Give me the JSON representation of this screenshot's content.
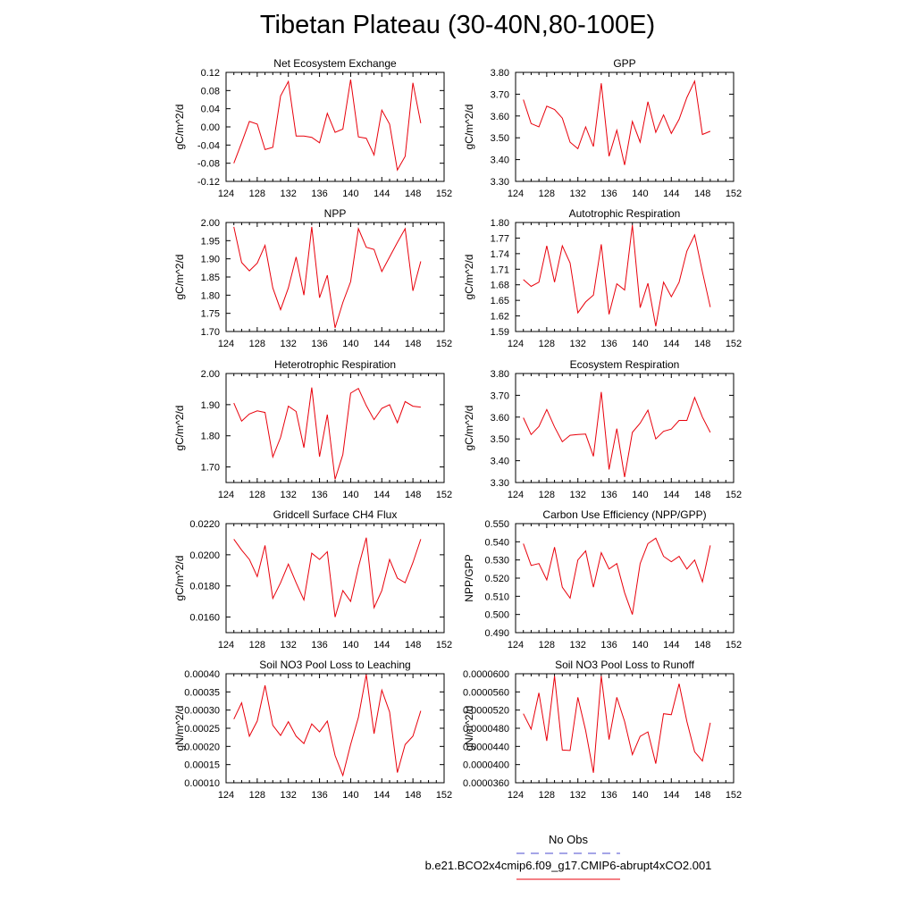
{
  "title": "Tibetan Plateau (30-40N,80-100E)",
  "x_ticks": [
    "124",
    "128",
    "132",
    "136",
    "140",
    "144",
    "148",
    "152"
  ],
  "legend": {
    "obs_label": "No Obs",
    "model_label": "b.e21.BCO2x4cmip6.f09_g17.CMIP6-abrupt4xCO2.001",
    "obs_color": "#4b4bcf",
    "model_color": "#e8000b"
  },
  "chart_data": [
    {
      "type": "line",
      "title": "Net Ecosystem Exchange",
      "ylabel": "gC/m^2/d",
      "xlim": [
        124,
        152
      ],
      "ylim": [
        -0.12,
        0.12
      ],
      "yticks": [
        "-0.12",
        "-0.08",
        "-0.04",
        "0.00",
        "0.04",
        "0.08",
        "0.12"
      ],
      "x": [
        125,
        126,
        127,
        128,
        129,
        130,
        131,
        132,
        133,
        134,
        135,
        136,
        137,
        138,
        139,
        140,
        141,
        142,
        143,
        144,
        145,
        146,
        147,
        148,
        149
      ],
      "series": [
        {
          "values": [
            -0.08,
            -0.035,
            0.012,
            0.006,
            -0.05,
            -0.045,
            0.068,
            0.1,
            -0.02,
            -0.02,
            -0.023,
            -0.035,
            0.03,
            -0.012,
            -0.005,
            0.104,
            -0.022,
            -0.025,
            -0.062,
            0.037,
            0.006,
            -0.095,
            -0.065,
            0.097,
            0.008
          ]
        }
      ]
    },
    {
      "type": "line",
      "title": "GPP",
      "ylabel": "gC/m^2/d",
      "xlim": [
        124,
        152
      ],
      "ylim": [
        3.3,
        3.8
      ],
      "yticks": [
        "3.30",
        "3.40",
        "3.50",
        "3.60",
        "3.70",
        "3.80"
      ],
      "x": [
        125,
        126,
        127,
        128,
        129,
        130,
        131,
        132,
        133,
        134,
        135,
        136,
        137,
        138,
        139,
        140,
        141,
        142,
        143,
        144,
        145,
        146,
        147,
        148,
        149
      ],
      "series": [
        {
          "values": [
            3.675,
            3.565,
            3.55,
            3.645,
            3.63,
            3.59,
            3.48,
            3.45,
            3.55,
            3.46,
            3.75,
            3.415,
            3.535,
            3.375,
            3.575,
            3.48,
            3.665,
            3.525,
            3.605,
            3.52,
            3.585,
            3.685,
            3.76,
            3.515,
            3.53
          ]
        }
      ]
    },
    {
      "type": "line",
      "title": "NPP",
      "ylabel": "gC/m^2/d",
      "xlim": [
        124,
        152
      ],
      "ylim": [
        1.7,
        2.0
      ],
      "yticks": [
        "1.70",
        "1.75",
        "1.80",
        "1.85",
        "1.90",
        "1.95",
        "2.00"
      ],
      "x": [
        125,
        126,
        127,
        128,
        129,
        130,
        131,
        132,
        133,
        134,
        135,
        136,
        137,
        138,
        139,
        140,
        141,
        142,
        143,
        144,
        145,
        146,
        147,
        148,
        149
      ],
      "series": [
        {
          "values": [
            1.988,
            1.89,
            1.867,
            1.888,
            1.937,
            1.82,
            1.76,
            1.82,
            1.905,
            1.8,
            1.988,
            1.793,
            1.855,
            1.71,
            1.78,
            1.837,
            1.983,
            1.932,
            1.926,
            1.865,
            1.905,
            1.945,
            1.983,
            1.812,
            1.893
          ]
        }
      ]
    },
    {
      "type": "line",
      "title": "Autotrophic Respiration",
      "ylabel": "gC/m^2/d",
      "xlim": [
        124,
        152
      ],
      "ylim": [
        1.59,
        1.8
      ],
      "yticks": [
        "1.59",
        "1.62",
        "1.65",
        "1.68",
        "1.71",
        "1.74",
        "1.77",
        "1.80"
      ],
      "x": [
        125,
        126,
        127,
        128,
        129,
        130,
        131,
        132,
        133,
        134,
        135,
        136,
        137,
        138,
        139,
        140,
        141,
        142,
        143,
        144,
        145,
        146,
        147,
        148,
        149
      ],
      "series": [
        {
          "values": [
            1.69,
            1.677,
            1.685,
            1.755,
            1.685,
            1.755,
            1.722,
            1.626,
            1.647,
            1.66,
            1.758,
            1.623,
            1.682,
            1.67,
            1.795,
            1.636,
            1.683,
            1.6,
            1.685,
            1.657,
            1.685,
            1.745,
            1.776,
            1.705,
            1.637
          ]
        }
      ]
    },
    {
      "type": "line",
      "title": "Heterotrophic Respiration",
      "ylabel": "gC/m^2/d",
      "xlim": [
        124,
        152
      ],
      "ylim": [
        1.65,
        2.0
      ],
      "yticks": [
        "1.70",
        "1.80",
        "1.90",
        "2.00"
      ],
      "x": [
        125,
        126,
        127,
        128,
        129,
        130,
        131,
        132,
        133,
        134,
        135,
        136,
        137,
        138,
        139,
        140,
        141,
        142,
        143,
        144,
        145,
        146,
        147,
        148,
        149
      ],
      "series": [
        {
          "values": [
            1.905,
            1.847,
            1.87,
            1.88,
            1.875,
            1.732,
            1.795,
            1.895,
            1.878,
            1.762,
            1.955,
            1.733,
            1.868,
            1.66,
            1.74,
            1.937,
            1.952,
            1.897,
            1.852,
            1.888,
            1.9,
            1.842,
            1.91,
            1.895,
            1.892
          ]
        }
      ]
    },
    {
      "type": "line",
      "title": "Ecosystem Respiration",
      "ylabel": "gC/m^2/d",
      "xlim": [
        124,
        152
      ],
      "ylim": [
        3.3,
        3.8
      ],
      "yticks": [
        "3.30",
        "3.40",
        "3.50",
        "3.60",
        "3.70",
        "3.80"
      ],
      "x": [
        125,
        126,
        127,
        128,
        129,
        130,
        131,
        132,
        133,
        134,
        135,
        136,
        137,
        138,
        139,
        140,
        141,
        142,
        143,
        144,
        145,
        146,
        147,
        148,
        149
      ],
      "series": [
        {
          "values": [
            3.597,
            3.52,
            3.557,
            3.635,
            3.555,
            3.487,
            3.517,
            3.52,
            3.522,
            3.42,
            3.715,
            3.36,
            3.547,
            3.325,
            3.53,
            3.572,
            3.632,
            3.5,
            3.535,
            3.545,
            3.585,
            3.585,
            3.69,
            3.6,
            3.53
          ]
        }
      ]
    },
    {
      "type": "line",
      "title": "Gridcell Surface CH4 Flux",
      "ylabel": "gC/m^2/d",
      "xlim": [
        124,
        152
      ],
      "ylim": [
        0.015,
        0.022
      ],
      "yticks": [
        "0.0160",
        "0.0180",
        "0.0200",
        "0.0220"
      ],
      "x": [
        125,
        126,
        127,
        128,
        129,
        130,
        131,
        132,
        133,
        134,
        135,
        136,
        137,
        138,
        139,
        140,
        141,
        142,
        143,
        144,
        145,
        146,
        147,
        148,
        149
      ],
      "series": [
        {
          "values": [
            0.021,
            0.0203,
            0.0197,
            0.0186,
            0.0206,
            0.0172,
            0.0182,
            0.0194,
            0.0182,
            0.0171,
            0.0201,
            0.0197,
            0.0202,
            0.016,
            0.0177,
            0.017,
            0.0192,
            0.0211,
            0.0166,
            0.0177,
            0.0197,
            0.0185,
            0.0182,
            0.0195,
            0.021
          ]
        }
      ]
    },
    {
      "type": "line",
      "title": "Carbon Use Efficiency (NPP/GPP)",
      "ylabel": "NPP/GPP",
      "xlim": [
        124,
        152
      ],
      "ylim": [
        0.49,
        0.55
      ],
      "yticks": [
        "0.490",
        "0.500",
        "0.510",
        "0.520",
        "0.530",
        "0.540",
        "0.550"
      ],
      "x": [
        125,
        126,
        127,
        128,
        129,
        130,
        131,
        132,
        133,
        134,
        135,
        136,
        137,
        138,
        139,
        140,
        141,
        142,
        143,
        144,
        145,
        146,
        147,
        148,
        149
      ],
      "series": [
        {
          "values": [
            0.539,
            0.527,
            0.528,
            0.519,
            0.537,
            0.515,
            0.509,
            0.53,
            0.535,
            0.515,
            0.534,
            0.525,
            0.528,
            0.512,
            0.5,
            0.528,
            0.539,
            0.542,
            0.532,
            0.529,
            0.532,
            0.525,
            0.53,
            0.518,
            0.538
          ]
        }
      ]
    },
    {
      "type": "line",
      "title": "Soil NO3 Pool Loss to Leaching",
      "ylabel": "gN/m^2/d",
      "xlim": [
        124,
        152
      ],
      "ylim": [
        0.0001,
        0.0004
      ],
      "yticks": [
        "0.00010",
        "0.00015",
        "0.00020",
        "0.00025",
        "0.00030",
        "0.00035",
        "0.00040"
      ],
      "x": [
        125,
        126,
        127,
        128,
        129,
        130,
        131,
        132,
        133,
        134,
        135,
        136,
        137,
        138,
        139,
        140,
        141,
        142,
        143,
        144,
        145,
        146,
        147,
        148,
        149
      ],
      "series": [
        {
          "values": [
            0.000275,
            0.00032,
            0.000228,
            0.00027,
            0.000368,
            0.000258,
            0.00023,
            0.000268,
            0.000228,
            0.000208,
            0.000262,
            0.00024,
            0.00027,
            0.000175,
            0.00012,
            0.000205,
            0.00028,
            0.000398,
            0.000235,
            0.000355,
            0.000295,
            0.000128,
            0.000205,
            0.000228,
            0.000298
          ]
        }
      ]
    },
    {
      "type": "line",
      "title": "Soil NO3 Pool Loss to Runoff",
      "ylabel": "gN/m^2/d",
      "xlim": [
        124,
        152
      ],
      "ylim": [
        3.6e-05,
        6e-05
      ],
      "yticks": [
        "0.0000360",
        "0.0000400",
        "0.0000440",
        "0.0000480",
        "0.0000520",
        "0.0000560",
        "0.0000600"
      ],
      "x": [
        125,
        126,
        127,
        128,
        129,
        130,
        131,
        132,
        133,
        134,
        135,
        136,
        137,
        138,
        139,
        140,
        141,
        142,
        143,
        144,
        145,
        146,
        147,
        148,
        149
      ],
      "series": [
        {
          "values": [
            5.12e-05,
            4.78e-05,
            5.58e-05,
            4.52e-05,
            5.95e-05,
            4.32e-05,
            4.31e-05,
            5.48e-05,
            4.75e-05,
            3.82e-05,
            5.95e-05,
            4.55e-05,
            5.48e-05,
            4.95e-05,
            4.22e-05,
            4.62e-05,
            4.72e-05,
            4.02e-05,
            5.12e-05,
            5.1e-05,
            5.78e-05,
            4.95e-05,
            4.28e-05,
            4.08e-05,
            4.92e-05
          ]
        }
      ]
    }
  ]
}
